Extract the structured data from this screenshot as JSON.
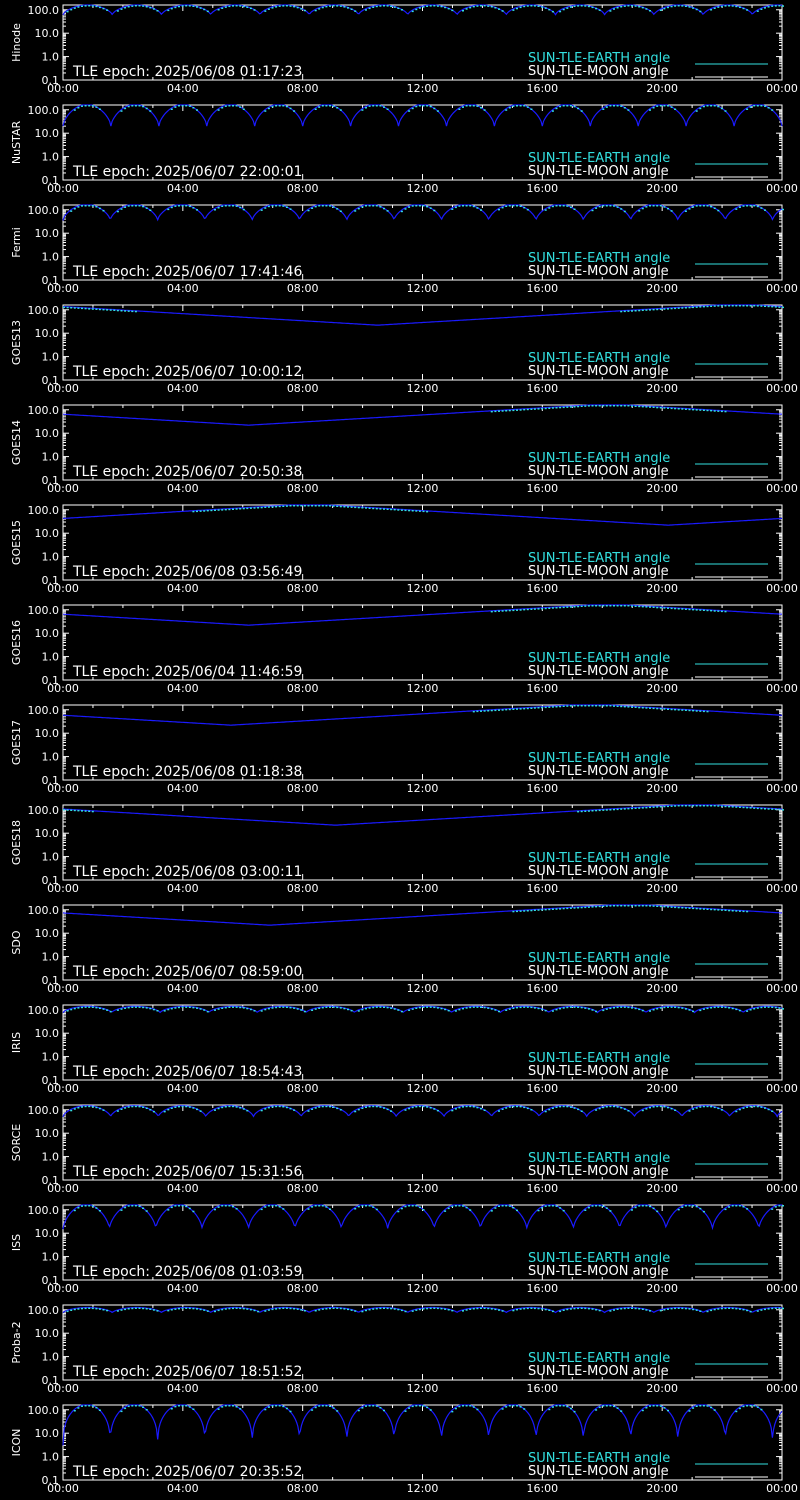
{
  "colors": {
    "earth": "#33e0e0",
    "moon": "#ffffff",
    "curve": "#1a1aff",
    "background": "#000000"
  },
  "legend": {
    "earth": "SUN-TLE-EARTH angle",
    "moon": "SUN-TLE-MOON angle"
  },
  "x_ticks": [
    "00:00",
    "04:00",
    "08:00",
    "12:00",
    "16:00",
    "20:00",
    "00:00"
  ],
  "y_ticks": [
    "100.0",
    "10.0",
    "1.0",
    "0.1"
  ],
  "chart_data": [
    {
      "type": "line",
      "satellite": "Hinode",
      "epoch": "TLE epoch: 2025/06/08 01:17:23",
      "orbits": 14.6,
      "min": 60,
      "max": 160
    },
    {
      "type": "line",
      "satellite": "NuSTAR",
      "epoch": "TLE epoch: 2025/06/07 22:00:01",
      "orbits": 15.0,
      "min": 20,
      "max": 170
    },
    {
      "type": "line",
      "satellite": "Fermi",
      "epoch": "TLE epoch: 2025/06/07 17:41:46",
      "orbits": 15.2,
      "min": 35,
      "max": 170
    },
    {
      "type": "line",
      "satellite": "GOES13",
      "epoch": "TLE epoch: 2025/06/07 10:00:12",
      "geo_min_hour": 10.5,
      "min": 22,
      "max": 178
    },
    {
      "type": "line",
      "satellite": "GOES14",
      "epoch": "TLE epoch: 2025/06/07 20:50:38",
      "geo_min_hour": 6.2,
      "min": 22,
      "max": 178
    },
    {
      "type": "line",
      "satellite": "GOES15",
      "epoch": "TLE epoch: 2025/06/08 03:56:49",
      "geo_min_hour": 20.2,
      "min": 22,
      "max": 178
    },
    {
      "type": "line",
      "satellite": "GOES16",
      "epoch": "TLE epoch: 2025/06/04 11:46:59",
      "geo_min_hour": 6.2,
      "min": 22,
      "max": 178
    },
    {
      "type": "line",
      "satellite": "GOES17",
      "epoch": "TLE epoch: 2025/06/08 01:18:38",
      "geo_min_hour": 5.6,
      "min": 22,
      "max": 178
    },
    {
      "type": "line",
      "satellite": "GOES18",
      "epoch": "TLE epoch: 2025/06/08 03:00:11",
      "geo_min_hour": 9.1,
      "min": 22,
      "max": 178
    },
    {
      "type": "line",
      "satellite": "SDO",
      "epoch": "TLE epoch: 2025/06/07 08:59:00",
      "geo_min_hour": 6.9,
      "min": 22,
      "max": 178
    },
    {
      "type": "line",
      "satellite": "IRIS",
      "epoch": "TLE epoch: 2025/06/07 18:54:43",
      "orbits": 14.8,
      "min": 75,
      "max": 140
    },
    {
      "type": "line",
      "satellite": "SORCE",
      "epoch": "TLE epoch: 2025/06/07 15:31:56",
      "orbits": 15.1,
      "min": 50,
      "max": 150
    },
    {
      "type": "line",
      "satellite": "ISS",
      "epoch": "TLE epoch: 2025/06/08 01:03:59",
      "orbits": 15.5,
      "min": 15,
      "max": 170
    },
    {
      "type": "line",
      "satellite": "Proba-2",
      "epoch": "TLE epoch: 2025/06/07 18:51:52",
      "orbits": 14.6,
      "min": 75,
      "max": 125
    },
    {
      "type": "line",
      "satellite": "ICON",
      "epoch": "TLE epoch: 2025/06/07 20:35:52",
      "orbits": 15.2,
      "min": 3,
      "max": 170
    }
  ]
}
